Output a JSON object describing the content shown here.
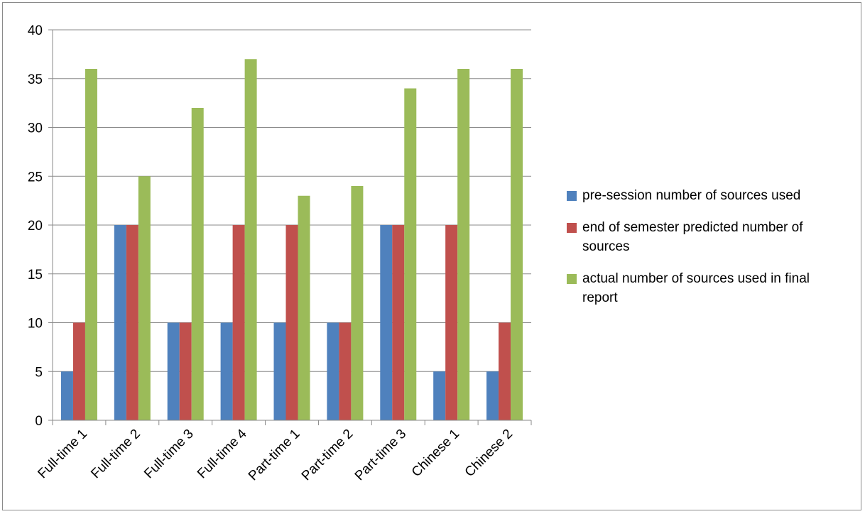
{
  "chart_data": {
    "type": "bar",
    "categories": [
      "Full-time 1",
      "Full-time 2",
      "Full-time 3",
      "Full-time 4",
      "Part-time 1",
      "Part-time 2",
      "Part-time 3",
      "Chinese 1",
      "Chinese 2"
    ],
    "series": [
      {
        "name": "pre-session number of sources used",
        "color": "#4F81BD",
        "values": [
          5,
          20,
          10,
          10,
          10,
          10,
          20,
          5,
          5
        ]
      },
      {
        "name": "end of semester predicted number of sources",
        "color": "#C0504D",
        "values": [
          10,
          20,
          10,
          20,
          20,
          10,
          20,
          20,
          10
        ]
      },
      {
        "name": "actual number of sources used in final report",
        "color": "#9BBB59",
        "values": [
          36,
          25,
          32,
          37,
          23,
          24,
          34,
          36,
          36
        ]
      }
    ],
    "ylim": [
      0,
      40
    ],
    "yticks": [
      "0",
      "5",
      "10",
      "15",
      "20",
      "25",
      "30",
      "35",
      "40"
    ],
    "grid": true,
    "legend_position": "right",
    "title": "",
    "xlabel": "",
    "ylabel": ""
  }
}
